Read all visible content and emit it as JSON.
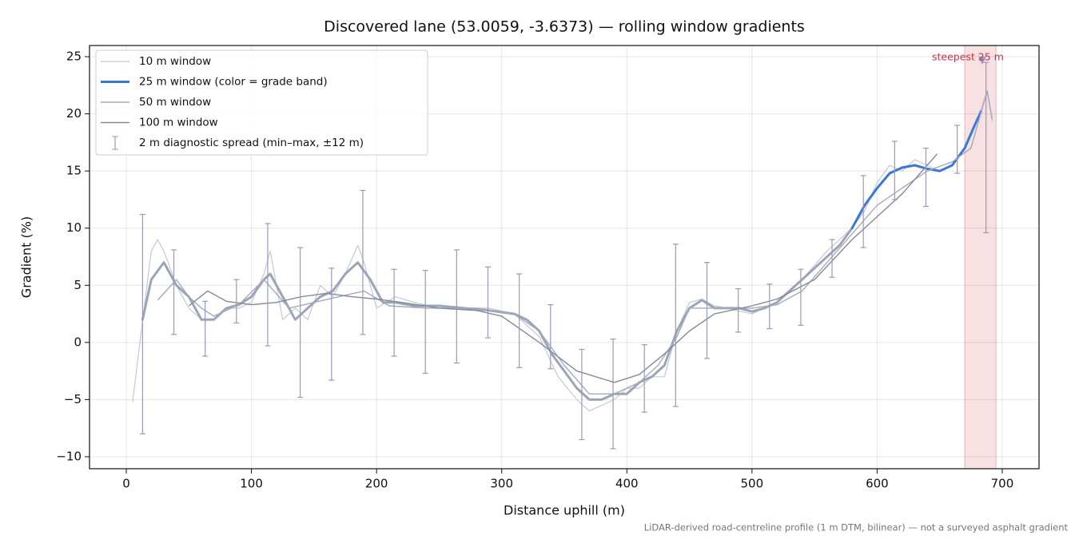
{
  "chart_data": {
    "type": "line",
    "title": "Discovered lane (53.0059, -3.6373) — rolling window gradients",
    "xlabel": "Distance uphill (m)",
    "ylabel": "Gradient (%)",
    "footnote": "LiDAR-derived road-centreline profile (1 m DTM, bilinear) — not a surveyed asphalt gradient",
    "xlim": [
      -29.4,
      729.4
    ],
    "ylim": [
      -11.05,
      25.98
    ],
    "xticks": [
      0,
      100,
      200,
      300,
      400,
      500,
      600,
      700
    ],
    "yticks": [
      {
        "value": -10,
        "label": "−10"
      },
      {
        "value": -5,
        "label": "−5"
      },
      0,
      5,
      10,
      15,
      20,
      25
    ],
    "grid": true,
    "legend": "upper left",
    "series": [
      {
        "name": "10 m window",
        "color": "#c3c9d5",
        "width": 1.2,
        "x": [
          5,
          12,
          20,
          25,
          30,
          40,
          50,
          60,
          70,
          80,
          90,
          100,
          110,
          115,
          120,
          125,
          135,
          145,
          155,
          165,
          175,
          185,
          190,
          200,
          215,
          230,
          250,
          270,
          290,
          310,
          330,
          345,
          360,
          370,
          380,
          390,
          400,
          410,
          420,
          430,
          440,
          450,
          460,
          470,
          480,
          500,
          520,
          540,
          560,
          580,
          590,
          600,
          610,
          620,
          630,
          640,
          650,
          660,
          670,
          680,
          688,
          692
        ],
        "values": [
          -5.2,
          1,
          8,
          9,
          8,
          5,
          3,
          2,
          2,
          3,
          3,
          3.5,
          6,
          8,
          5,
          2,
          3,
          2,
          5,
          4,
          6,
          8.5,
          7,
          3,
          4,
          3.5,
          3,
          3,
          3,
          2.5,
          0.5,
          -3,
          -5,
          -6,
          -5.5,
          -5,
          -4,
          -4,
          -3,
          -3,
          1,
          3.5,
          3.8,
          3.2,
          3,
          2.5,
          3.5,
          5.5,
          8,
          10,
          11.5,
          14,
          15.5,
          15,
          16,
          15.5,
          15,
          15.5,
          17,
          19.5,
          22,
          19.3
        ]
      },
      {
        "name": "25 m window (color = grade band)",
        "color": "#3a78d8",
        "width": 3,
        "bands": {
          "thresholds": [
            10,
            20
          ],
          "colors": [
            "#9aa5b5",
            "#3a78d8",
            "#e8900c"
          ]
        },
        "x": [
          13,
          20,
          30,
          40,
          50,
          60,
          70,
          80,
          90,
          100,
          110,
          115,
          125,
          135,
          145,
          155,
          165,
          175,
          185,
          195,
          205,
          215,
          230,
          250,
          270,
          290,
          310,
          320,
          330,
          340,
          350,
          360,
          370,
          380,
          390,
          400,
          410,
          420,
          430,
          440,
          450,
          460,
          470,
          480,
          490,
          500,
          510,
          520,
          530,
          540,
          550,
          560,
          570,
          580,
          590,
          600,
          610,
          620,
          630,
          640,
          650,
          660,
          670,
          678,
          683
        ],
        "values": [
          2,
          5.5,
          7,
          5,
          4,
          2,
          2,
          3,
          3.3,
          4,
          5.5,
          6,
          4,
          2,
          3,
          4,
          4.5,
          6,
          7,
          5.5,
          3.5,
          3.5,
          3.2,
          3.2,
          3,
          2.8,
          2.5,
          2,
          1,
          -1,
          -2.5,
          -4,
          -5,
          -5,
          -4.5,
          -4.5,
          -3.5,
          -3,
          -2,
          1,
          3,
          3.7,
          3,
          3,
          3,
          2.7,
          3,
          3.5,
          4.5,
          5.5,
          6.5,
          7.5,
          8.5,
          10,
          12,
          13.5,
          14.8,
          15.3,
          15.5,
          15.2,
          15,
          15.5,
          17,
          19,
          20.2
        ]
      },
      {
        "name": "50 m window",
        "color": "#a2abbb",
        "width": 1.4,
        "x": [
          25,
          40,
          50,
          60,
          70,
          90,
          110,
          130,
          150,
          170,
          190,
          210,
          240,
          280,
          310,
          330,
          350,
          370,
          390,
          410,
          425,
          440,
          450,
          470,
          500,
          520,
          540,
          560,
          580,
          600,
          620,
          640,
          660,
          675,
          688,
          692
        ],
        "values": [
          3.7,
          5.5,
          4,
          3,
          2.3,
          3.3,
          5.5,
          3,
          3.5,
          4,
          4.5,
          3.2,
          3,
          3,
          2.5,
          1,
          -2,
          -4.5,
          -4.5,
          -3.5,
          -2,
          0.5,
          3,
          3,
          3,
          3.3,
          4.5,
          7,
          9.5,
          12,
          13.5,
          15,
          15.8,
          17,
          22,
          19.5
        ]
      },
      {
        "name": "100 m window",
        "color": "#838a99",
        "width": 1.4,
        "x": [
          50,
          65,
          80,
          100,
          120,
          140,
          160,
          180,
          200,
          220,
          250,
          280,
          300,
          330,
          360,
          390,
          410,
          430,
          450,
          470,
          500,
          520,
          550,
          580,
          600,
          620,
          640,
          648
        ],
        "values": [
          3.2,
          4.5,
          3.6,
          3.3,
          3.5,
          4,
          4.3,
          4,
          3.8,
          3.5,
          3,
          2.8,
          2.3,
          0,
          -2.5,
          -3.5,
          -2.8,
          -1,
          1,
          2.5,
          3.2,
          3.8,
          5.5,
          9,
          11,
          13,
          15.5,
          16.5
        ]
      }
    ],
    "errorbars": {
      "name": "2 m diagnostic spread (min–max, ±12 m)",
      "color": "#9c98b8",
      "x": [
        13,
        38,
        63,
        88,
        113,
        139,
        164,
        189,
        214,
        239,
        264,
        289,
        314,
        339,
        364,
        389,
        414,
        439,
        464,
        489,
        514,
        539,
        564,
        589,
        614,
        639,
        664,
        687
      ],
      "lows": [
        -8,
        0.7,
        -1.2,
        1.7,
        -0.3,
        -4.8,
        -3.3,
        0.7,
        -1.2,
        -2.7,
        -1.8,
        0.4,
        -2.2,
        -2.3,
        -8.5,
        -9.3,
        -6.1,
        -5.6,
        -1.4,
        0.9,
        1.2,
        1.5,
        5.7,
        8.3,
        12.5,
        11.9,
        14.8,
        9.6
      ],
      "highs": [
        11.2,
        8.1,
        3.6,
        5.5,
        10.4,
        8.3,
        6.5,
        13.3,
        6.4,
        6.3,
        8.1,
        6.6,
        6.0,
        3.3,
        -0.6,
        0.3,
        -0.2,
        8.6,
        7.0,
        4.7,
        5.1,
        6.4,
        9.0,
        14.6,
        17.6,
        17.0,
        19.0,
        24.5
      ]
    },
    "steepest": {
      "label": "steepest 25 m",
      "span": [
        670,
        695
      ],
      "x": 684,
      "y": 24.6,
      "color": "#cc3344"
    }
  }
}
